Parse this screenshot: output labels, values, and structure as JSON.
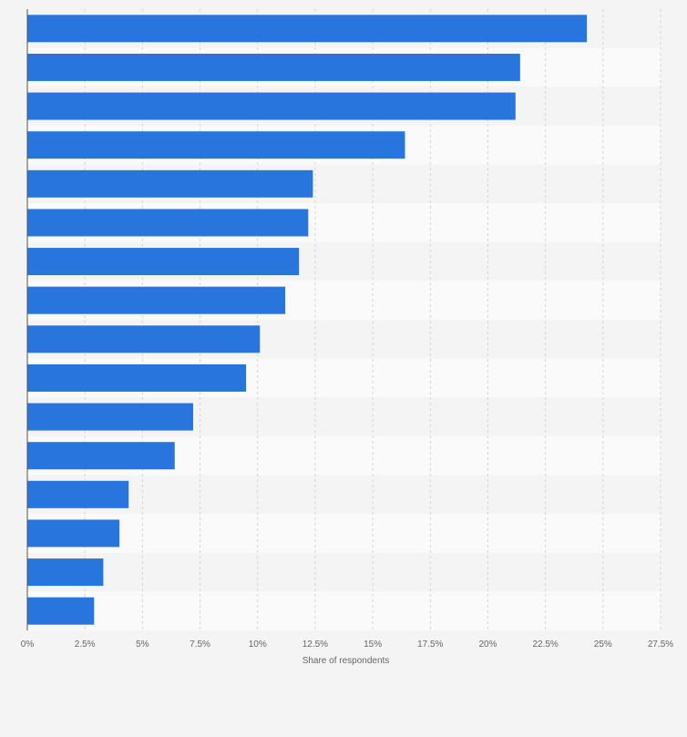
{
  "chart_data": {
    "type": "bar",
    "orientation": "horizontal",
    "values": [
      24.3,
      21.4,
      21.2,
      16.4,
      12.4,
      12.2,
      11.8,
      11.2,
      10.1,
      9.5,
      7.2,
      6.4,
      4.4,
      4.0,
      3.3,
      2.9
    ],
    "xlim": [
      0,
      27.5
    ],
    "xticks": [
      "0%",
      "2.5%",
      "5%",
      "7.5%",
      "10%",
      "12.5%",
      "15%",
      "17.5%",
      "20%",
      "22.5%",
      "25%",
      "27.5%"
    ],
    "xlabel": "Share of respondents",
    "bar_color": "#2876dd",
    "grid": "vertical dashed",
    "row_band_colors": [
      "#f4f4f4",
      "#fafafa"
    ]
  }
}
